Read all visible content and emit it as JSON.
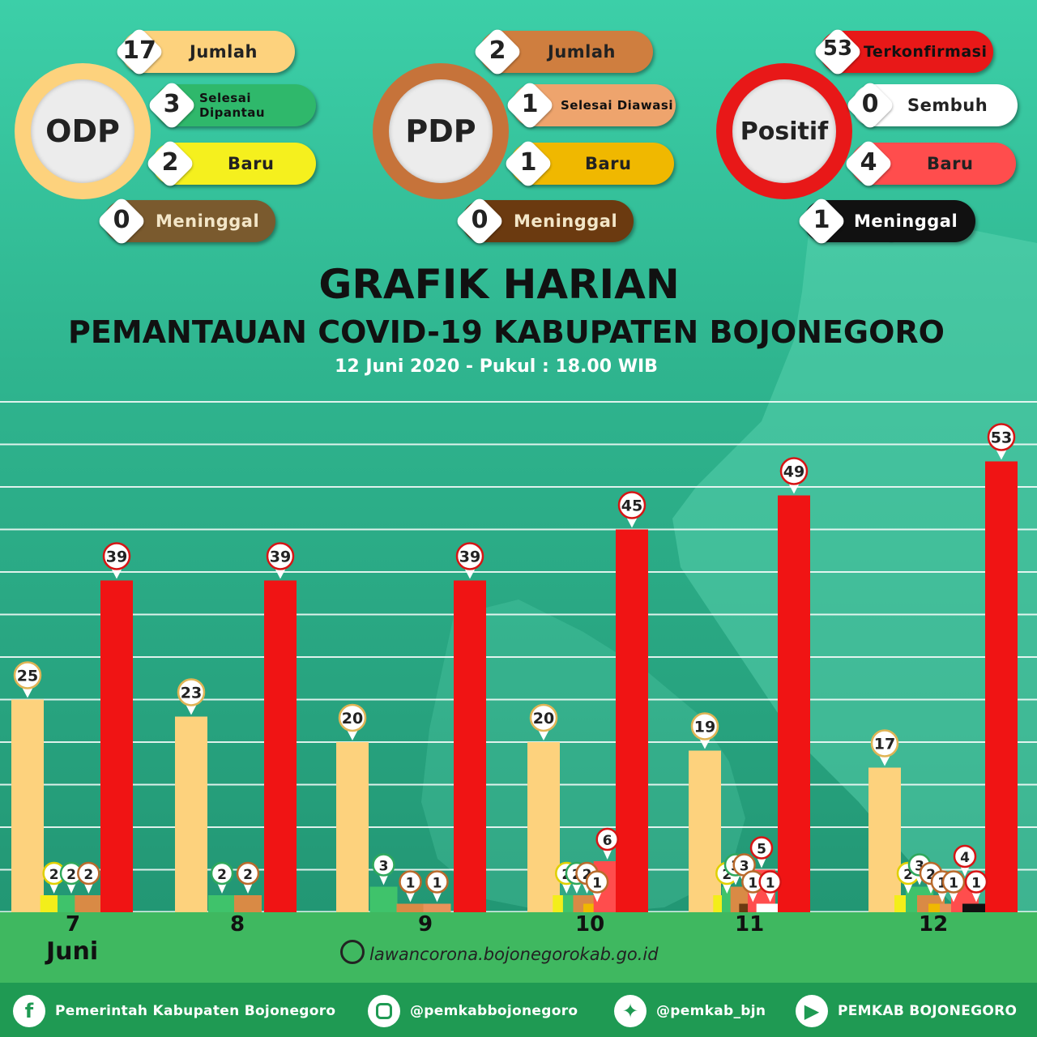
{
  "odp": {
    "title": "ODP",
    "items": [
      {
        "value": "17",
        "label": "Jumlah"
      },
      {
        "value": "3",
        "label": "Selesai Dipantau"
      },
      {
        "value": "2",
        "label": "Baru"
      },
      {
        "value": "0",
        "label": "Meninggal"
      }
    ]
  },
  "pdp": {
    "title": "PDP",
    "items": [
      {
        "value": "2",
        "label": "Jumlah"
      },
      {
        "value": "1",
        "label": "Selesai Diawasi"
      },
      {
        "value": "1",
        "label": "Baru"
      },
      {
        "value": "0",
        "label": "Meninggal"
      }
    ]
  },
  "positif": {
    "title": "Positif",
    "items": [
      {
        "value": "53",
        "label": "Terkonfirmasi"
      },
      {
        "value": "0",
        "label": "Sembuh"
      },
      {
        "value": "4",
        "label": "Baru"
      },
      {
        "value": "1",
        "label": "Meninggal"
      }
    ]
  },
  "header": {
    "title": "GRAFIK HARIAN",
    "subtitle": "PEMANTAUAN COVID-19 KABUPATEN BOJONEGORO",
    "date": "12 Juni 2020 - Pukul : 18.00 WIB"
  },
  "chart_data": {
    "type": "bar",
    "categories": [
      "7",
      "8",
      "9",
      "10",
      "11",
      "12"
    ],
    "category_suffix": "Juni",
    "ylim": [
      0,
      60
    ],
    "grid": true,
    "series": [
      {
        "key": "odp_jumlah",
        "color": "#fdd27d",
        "values": [
          25,
          23,
          20,
          20,
          19,
          17
        ]
      },
      {
        "key": "odp_baru",
        "color": "#f3ee1a",
        "values": [
          2,
          null,
          null,
          2,
          2,
          2
        ]
      },
      {
        "key": "odp_selesai",
        "color": "#3fc36b",
        "values": [
          2,
          2,
          3,
          2,
          3,
          3
        ]
      },
      {
        "key": "pdp_jumlah",
        "color": "#d98a45",
        "values": [
          2,
          2,
          1,
          2,
          3,
          2
        ]
      },
      {
        "key": "pdp_baru",
        "color": "#f0b800",
        "values": [
          null,
          null,
          null,
          1,
          null,
          1
        ]
      },
      {
        "key": "pdp_selesai",
        "color": "#e8935a",
        "values": [
          null,
          null,
          1,
          null,
          null,
          1
        ]
      },
      {
        "key": "pdp_meninggal",
        "color": "#6b3a10",
        "values": [
          null,
          null,
          null,
          null,
          1,
          null
        ]
      },
      {
        "key": "positif_baru",
        "color": "#ff4d4d",
        "values": [
          null,
          null,
          null,
          6,
          5,
          4
        ]
      },
      {
        "key": "positif_meninggal",
        "color": "#111111",
        "values": [
          null,
          null,
          null,
          null,
          null,
          1
        ]
      },
      {
        "key": "positif_sembuh",
        "color": "#ffffff",
        "values": [
          null,
          null,
          null,
          null,
          1,
          null
        ]
      },
      {
        "key": "positif_terkonfirmasi",
        "color": "#f01414",
        "values": [
          39,
          39,
          39,
          45,
          49,
          53
        ]
      }
    ]
  },
  "footer": {
    "url": "lawancorona.bojonegorokab.go.id",
    "facebook": "Pemerintah Kabupaten Bojonegoro",
    "instagram": "@pemkabbojonegoro",
    "twitter": "@pemkab_bjn",
    "youtube": "PEMKAB BOJONEGORO",
    "icons": [
      "facebook-icon",
      "instagram-icon",
      "twitter-icon",
      "youtube-icon",
      "globe-icon"
    ]
  }
}
